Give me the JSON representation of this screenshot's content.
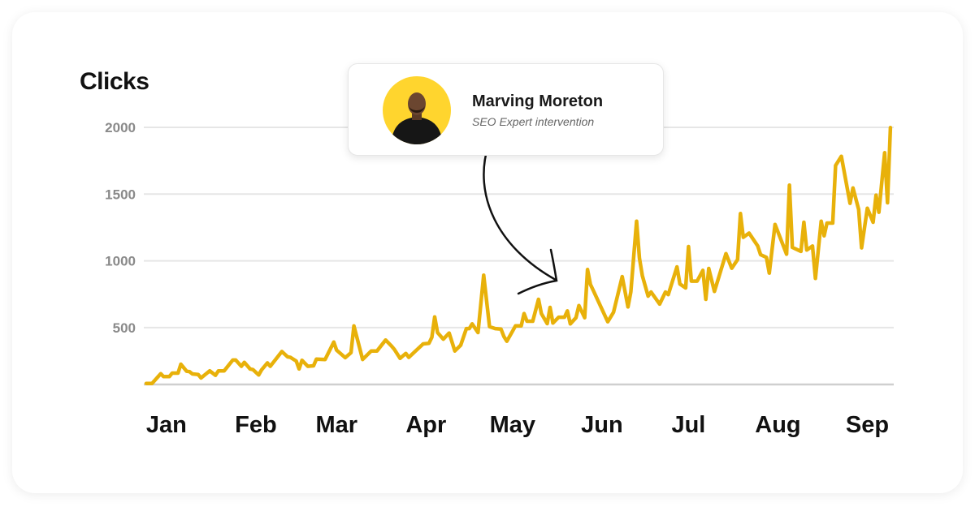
{
  "card": {
    "name": "Marving Moreton",
    "subtitle": "SEO Expert intervention",
    "avatar_bg": "#FFD52E"
  },
  "chart_data": {
    "type": "line",
    "title": "",
    "ylabel": "Clicks",
    "xlabel": "",
    "y_ticks": [
      500,
      1000,
      1500,
      2000
    ],
    "ylim": [
      75,
      2000
    ],
    "x_tick_labels": [
      "Jan",
      "Feb",
      "Mar",
      "Apr",
      "May",
      "Jun",
      "Jul",
      "Aug",
      "Sep"
    ],
    "grid": true,
    "line_color": "#E8B10A",
    "annotation": "Marving Moreton — SEO Expert intervention (arrow pointing to late May)",
    "series": [
      {
        "x": [
          "01-01",
          "01-03",
          "01-06",
          "01-07",
          "01-09",
          "01-10",
          "01-12",
          "01-13",
          "01-15",
          "01-16",
          "01-17",
          "01-19",
          "01-20",
          "01-23",
          "01-25",
          "01-26",
          "01-28",
          "01-31",
          "02-01",
          "02-03",
          "02-04",
          "02-06",
          "02-07",
          "02-09",
          "02-10",
          "02-12",
          "02-13",
          "02-17",
          "02-19",
          "02-20",
          "02-22",
          "02-23",
          "02-24",
          "02-26",
          "02-28",
          "03-01",
          "03-04",
          "03-07",
          "03-08",
          "03-11",
          "03-13",
          "03-14",
          "03-16",
          "03-17",
          "03-20",
          "03-22",
          "03-25",
          "03-27",
          "03-28",
          "03-30",
          "04-01",
          "04-02",
          "04-04",
          "04-07",
          "04-09",
          "04-10",
          "04-11",
          "04-12",
          "04-14",
          "04-16",
          "04-18",
          "04-20",
          "04-22",
          "04-23",
          "04-24",
          "04-26",
          "04-28",
          "04-30",
          "05-02",
          "05-04",
          "05-05",
          "05-06",
          "05-08",
          "05-09",
          "05-11",
          "05-12",
          "05-13",
          "05-15",
          "05-17",
          "05-18",
          "05-20",
          "05-21",
          "05-22",
          "05-24",
          "05-26",
          "05-27",
          "05-28",
          "05-30",
          "05-31",
          "06-02",
          "06-03",
          "06-04",
          "06-05",
          "06-10",
          "06-12",
          "06-15",
          "06-17",
          "06-18",
          "06-20",
          "06-21",
          "06-22",
          "06-24",
          "06-25",
          "06-28",
          "06-30",
          "07-01",
          "07-04",
          "07-05",
          "07-07",
          "07-08",
          "07-09",
          "07-11",
          "07-13",
          "07-14",
          "07-15",
          "07-17",
          "07-21",
          "07-23",
          "07-25",
          "07-26",
          "07-27",
          "07-29",
          "08-01",
          "08-02",
          "08-04",
          "08-05",
          "08-07",
          "08-11",
          "08-12",
          "08-13",
          "08-16",
          "08-17",
          "08-18",
          "08-20",
          "08-21",
          "08-23",
          "08-24",
          "08-25",
          "08-27",
          "08-28",
          "08-30",
          "09-02",
          "09-03",
          "09-05",
          "09-06",
          "09-08",
          "09-10",
          "09-11",
          "09-12",
          "09-14",
          "09-15",
          "09-16"
        ],
        "values": [
          82,
          82,
          155,
          133,
          133,
          159,
          159,
          226,
          173,
          170,
          153,
          149,
          123,
          176,
          143,
          176,
          176,
          257,
          257,
          210,
          240,
          190,
          185,
          145,
          184,
          236,
          210,
          321,
          281,
          277,
          250,
          190,
          255,
          210,
          214,
          264,
          261,
          392,
          331,
          275,
          312,
          513,
          346,
          261,
          325,
          325,
          407,
          362,
          337,
          270,
          307,
          277,
          317,
          378,
          382,
          427,
          580,
          463,
          413,
          459,
          325,
          368,
          493,
          493,
          528,
          463,
          893,
          507,
          493,
          489,
          433,
          398,
          473,
          513,
          513,
          605,
          548,
          548,
          712,
          605,
          530,
          651,
          534,
          578,
          578,
          625,
          528,
          574,
          665,
          574,
          935,
          823,
          777,
          544,
          615,
          882,
          655,
          767,
          1297,
          1020,
          888,
          736,
          767,
          676,
          767,
          747,
          955,
          827,
          797,
          1107,
          848,
          848,
          929,
          712,
          943,
          771,
          1054,
          945,
          1010,
          1354,
          1176,
          1208,
          1111,
          1046,
          1026,
          908,
          1273,
          1050,
          1567,
          1101,
          1071,
          1289,
          1081,
          1111,
          868,
          1297,
          1188,
          1283,
          1283,
          1714,
          1783,
          1431,
          1546,
          1385,
          1097,
          1394,
          1289,
          1492,
          1364,
          1810,
          1435,
          1998
        ]
      }
    ]
  }
}
